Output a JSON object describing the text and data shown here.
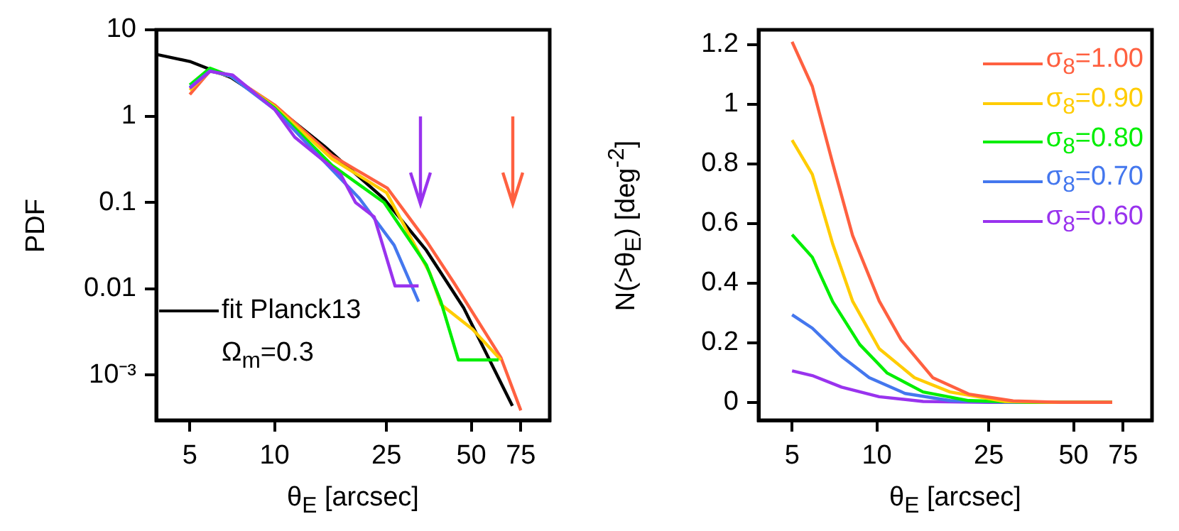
{
  "chart_data": [
    {
      "type": "line",
      "xlabel": "θ$_{E}$ [arcsec]",
      "ylabel": "PDF",
      "log": "xy",
      "grid": false,
      "marker": "none",
      "line_style": "solid",
      "legend": "bottom left",
      "xlim": [
        3.8,
        95
      ],
      "xticks": [
        5,
        10,
        25,
        50,
        75
      ],
      "ylim": [
        0.00031,
        10
      ],
      "yticks": [
        10,
        1,
        0.1,
        0.01,
        {
          "value": 0.001,
          "label": "10⁻³"
        }
      ],
      "annotations": [
        "Ω$_{m}$=0.3"
      ],
      "series": [
        {
          "color": "#9933ee",
          "x": [
            5,
            5.9,
            7.1,
            10,
            11.8,
            17.2,
            19.4,
            22.6,
            26.8,
            32.5
          ],
          "values": [
            2.1,
            3.3,
            3.0,
            1.2,
            0.57,
            0.21,
            0.1,
            0.068,
            0.0108,
            0.0108
          ]
        },
        {
          "color": "#4477ee",
          "x": [
            5,
            5.9,
            7,
            10,
            16,
            20,
            26.6,
            32.5
          ],
          "values": [
            2.15,
            3.35,
            2.9,
            1.2,
            0.24,
            0.112,
            0.032,
            0.0071
          ]
        },
        {
          "color": "#00ee00",
          "x": [
            5,
            5.9,
            7,
            10,
            16,
            24.5,
            34.6,
            39,
            45,
            62.5
          ],
          "values": [
            2.3,
            3.6,
            2.9,
            1.25,
            0.27,
            0.1,
            0.019,
            0.0071,
            0.0015,
            0.0015
          ]
        },
        {
          "color": "#ffcc00",
          "x": [
            5,
            5.9,
            7,
            10,
            16,
            25,
            35.7,
            39,
            50.5,
            63.7
          ],
          "values": [
            2.0,
            3.35,
            2.9,
            1.3,
            0.32,
            0.13,
            0.015,
            0.0066,
            0.0034,
            0.0015
          ]
        },
        {
          "color": "#ff6040",
          "x": [
            5,
            5.9,
            7,
            10,
            16,
            25.2,
            34.6,
            43.5,
            63.7,
            75
          ],
          "values": [
            1.78,
            3.35,
            2.9,
            1.35,
            0.35,
            0.146,
            0.036,
            0.0116,
            0.0016,
            0.00039
          ]
        },
        {
          "name": "fit Planck13",
          "color": "#000000",
          "x": [
            3.8,
            5,
            7,
            10,
            15,
            24.5,
            34.6,
            47,
            70
          ],
          "values": [
            5.2,
            4.3,
            2.8,
            1.3,
            0.45,
            0.11,
            0.028,
            0.006,
            0.00044
          ]
        }
      ]
    },
    {
      "type": "line",
      "xlabel": "θ$_{E}$ [arcsec]",
      "ylabel": "N(>θ$_{E}$)  [deg$^{-2}$]",
      "log": "x",
      "grid": false,
      "marker": "none",
      "line_style": "solid",
      "legend": "top right",
      "xlim": [
        3.8,
        95
      ],
      "xticks": [
        5,
        10,
        25,
        50,
        75
      ],
      "ylim": [
        -0.06,
        1.25
      ],
      "yticks": [
        0,
        0.2,
        0.4,
        0.6,
        0.8,
        1,
        1.2
      ],
      "series": [
        {
          "name": "σ$_{8}$=1.00",
          "color": "#ff6040",
          "x": [
            5,
            5.9,
            6.98,
            8.2,
            10.2,
            12.2,
            15.8,
            21.2,
            30.5,
            44.6,
            68.6
          ],
          "values": [
            1.21,
            1.06,
            0.8,
            0.56,
            0.34,
            0.21,
            0.083,
            0.028,
            0.005,
            0,
            0
          ]
        },
        {
          "name": "σ$_{8}$=0.90",
          "color": "#ffcc00",
          "x": [
            5,
            5.9,
            6.98,
            8.2,
            10.2,
            13.6,
            18.2,
            28.6,
            44.6,
            68.6
          ],
          "values": [
            0.88,
            0.765,
            0.53,
            0.34,
            0.18,
            0.083,
            0.035,
            0.003,
            0,
            0
          ]
        },
        {
          "name": "σ$_{8}$=0.80",
          "color": "#00ee00",
          "x": [
            5,
            5.9,
            6.98,
            8.7,
            10.9,
            14.6,
            21.2,
            35,
            68.6
          ],
          "values": [
            0.563,
            0.487,
            0.337,
            0.194,
            0.098,
            0.035,
            0.006,
            0,
            0
          ]
        },
        {
          "name": "σ$_{8}$=0.70",
          "color": "#4477ee",
          "x": [
            5,
            5.9,
            7.5,
            9.4,
            12.6,
            18.2,
            30,
            68.6
          ],
          "values": [
            0.294,
            0.249,
            0.154,
            0.083,
            0.03,
            0.006,
            0,
            0
          ]
        },
        {
          "name": "σ$_{8}$=0.60",
          "color": "#9933ee",
          "x": [
            5,
            5.9,
            7.5,
            10.2,
            14.6,
            25,
            68.6
          ],
          "values": [
            0.106,
            0.09,
            0.051,
            0.019,
            0.003,
            0,
            0
          ]
        }
      ]
    }
  ]
}
